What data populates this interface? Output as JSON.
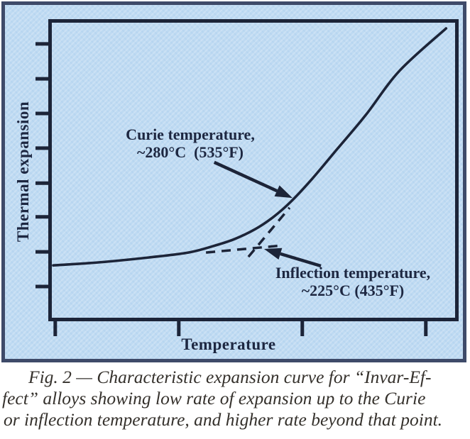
{
  "figure": {
    "y_axis_label": "Thermal expansion",
    "x_axis_label": "Temperature",
    "annotations": {
      "curie": {
        "line1": "Curie temperature,",
        "line2": "~280°C  (535°F)"
      },
      "inflection": {
        "line1": "Inflection temperature,",
        "line2": "~225°C (435°F)"
      }
    }
  },
  "caption": {
    "lines": [
      "Fig. 2 — Characteristic expansion curve for “Invar-Ef-",
      "fect” alloys showing low rate of expansion up to the Curie",
      "or inflection temperature, and higher rate beyond that point."
    ]
  },
  "colors": {
    "page_background": "#ffffff",
    "panel_background": "#bedaf2",
    "panel_border": "#3e4a69",
    "ink": "#1c2438",
    "label_text": "#1d2741",
    "caption_text": "#35312c"
  },
  "chart_data": {
    "type": "line",
    "title": "",
    "xlabel": "Temperature",
    "ylabel": "Thermal expansion",
    "axis_numeric_labels": false,
    "grid": false,
    "legend": false,
    "x_tick_pos": [
      0.017,
      0.318,
      0.619,
      0.92
    ],
    "y_tick_pos": [
      0.082,
      0.198,
      0.313,
      0.428,
      0.544,
      0.656,
      0.772,
      0.887
    ],
    "series": [
      {
        "name": "expansion-curve",
        "style": "solid",
        "points_rel": [
          [
            0.012,
            0.188
          ],
          [
            0.124,
            0.198
          ],
          [
            0.245,
            0.214
          ],
          [
            0.34,
            0.23
          ],
          [
            0.4,
            0.251
          ],
          [
            0.452,
            0.274
          ],
          [
            0.503,
            0.307
          ],
          [
            0.547,
            0.347
          ],
          [
            0.59,
            0.398
          ],
          [
            0.641,
            0.472
          ],
          [
            0.702,
            0.57
          ],
          [
            0.771,
            0.681
          ],
          [
            0.853,
            0.826
          ],
          [
            0.966,
            0.965
          ]
        ]
      },
      {
        "name": "low-slope-tangent-extension",
        "style": "dashed",
        "points_rel": [
          [
            0.383,
            0.23
          ],
          [
            0.567,
            0.253
          ]
        ]
      },
      {
        "name": "steep-slope-tangent-extension",
        "style": "dashed",
        "points_rel": [
          [
            0.486,
            0.216
          ],
          [
            0.586,
            0.377
          ]
        ]
      }
    ],
    "annotations": [
      {
        "label": "Curie temperature, ~280°C (535°F)",
        "value_c": 280,
        "value_f": 535,
        "arrow_from_rel": [
          0.403,
          0.526
        ],
        "arrow_to_rel": [
          0.593,
          0.409
        ]
      },
      {
        "label": "Inflection temperature, ~225°C (435°F)",
        "value_c": 225,
        "value_f": 435,
        "arrow_from_rel": [
          0.662,
          0.186
        ],
        "arrow_to_rel": [
          0.524,
          0.242
        ]
      }
    ]
  }
}
